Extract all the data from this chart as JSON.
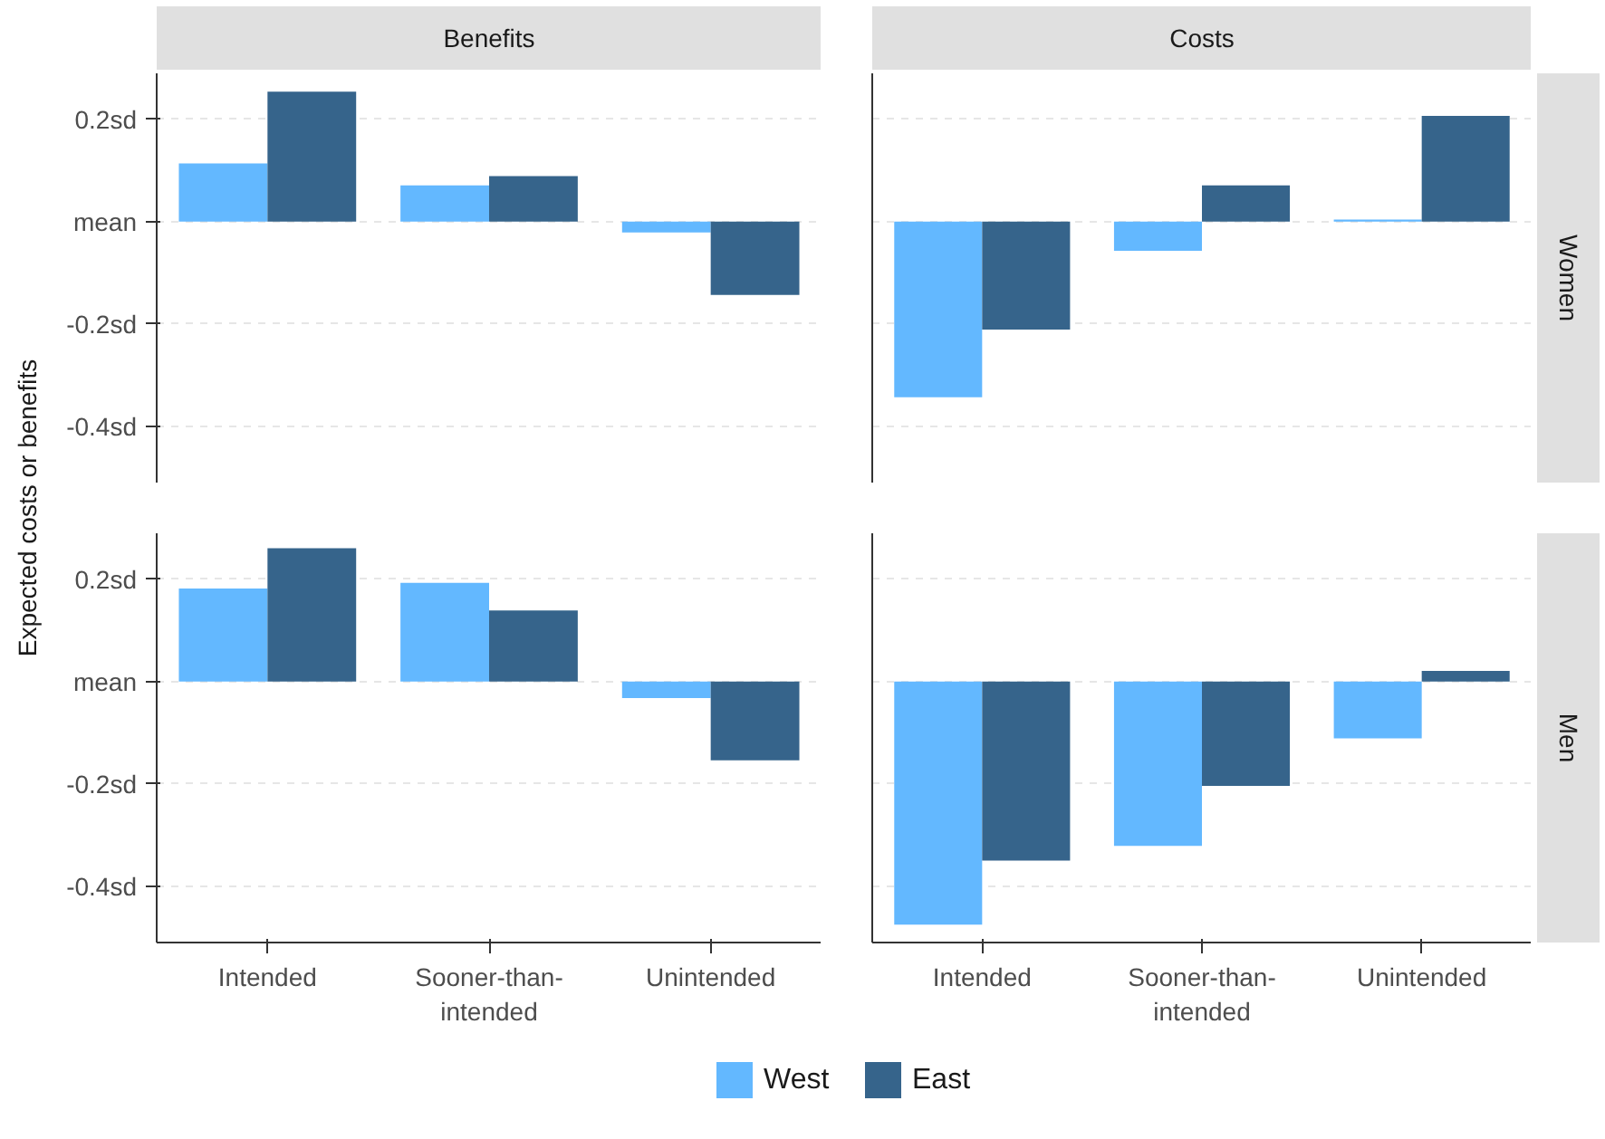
{
  "chart_data": [
    {
      "type": "bar",
      "title": "Benefits",
      "ylabel": "Expected costs or benefits",
      "categories": [
        "Intended",
        "Sooner-than-intended",
        "Unintended"
      ],
      "series": [
        {
          "name": "West",
          "color": "#63b8ff",
          "values": [
            0.114,
            0.071,
            -0.021
          ]
        },
        {
          "name": "East",
          "color": "#36648b",
          "values": [
            0.254,
            0.089,
            -0.143
          ]
        }
      ],
      "ylim": [
        -0.51,
        0.29
      ],
      "yticks": [
        {
          "value": -0.4,
          "label": "-0.4sd"
        },
        {
          "value": -0.2,
          "label": "-0.2sd"
        },
        {
          "value": 0,
          "label": "mean"
        },
        {
          "value": 0.2,
          "label": "0.2sd"
        }
      ],
      "grid": "y",
      "legend": "bottom",
      "tick_labels": "y"
    },
    {
      "type": "bar",
      "title": "Costs",
      "annotations": [
        "Women"
      ],
      "categories": [
        "Intended",
        "Sooner-than-intended",
        "Unintended"
      ],
      "series": [
        {
          "name": "West",
          "color": "#63b8ff",
          "values": [
            -0.343,
            -0.057,
            0.004
          ]
        },
        {
          "name": "East",
          "color": "#36648b",
          "values": [
            -0.211,
            0.071,
            0.207
          ]
        }
      ],
      "ylim": [
        -0.51,
        0.29
      ],
      "yticks": [
        {
          "value": -0.4,
          "label": "-0.4sd"
        },
        {
          "value": -0.2,
          "label": "-0.2sd"
        },
        {
          "value": 0,
          "label": "mean"
        },
        {
          "value": 0.2,
          "label": "0.2sd"
        }
      ],
      "grid": "y",
      "tick_labels": false
    },
    {
      "type": "bar",
      "categories": [
        "Intended",
        "Sooner-than-intended",
        "Unintended"
      ],
      "series": [
        {
          "name": "West",
          "color": "#63b8ff",
          "values": [
            0.182,
            0.193,
            -0.032
          ]
        },
        {
          "name": "East",
          "color": "#36648b",
          "values": [
            0.261,
            0.139,
            -0.154
          ]
        }
      ],
      "ylim": [
        -0.51,
        0.29
      ],
      "yticks": [
        {
          "value": -0.4,
          "label": "-0.4sd"
        },
        {
          "value": -0.2,
          "label": "-0.2sd"
        },
        {
          "value": 0,
          "label": "mean"
        },
        {
          "value": 0.2,
          "label": "0.2sd"
        }
      ],
      "grid": "y"
    },
    {
      "type": "bar",
      "annotations": [
        "Men"
      ],
      "categories": [
        "Intended",
        "Sooner-than-intended",
        "Unintended"
      ],
      "series": [
        {
          "name": "West",
          "color": "#63b8ff",
          "values": [
            -0.475,
            -0.321,
            -0.111
          ]
        },
        {
          "name": "East",
          "color": "#36648b",
          "values": [
            -0.35,
            -0.204,
            0.021
          ]
        }
      ],
      "ylim": [
        -0.51,
        0.29
      ],
      "yticks": [
        {
          "value": -0.4,
          "label": "-0.4sd"
        },
        {
          "value": -0.2,
          "label": "-0.2sd"
        },
        {
          "value": 0,
          "label": "mean"
        },
        {
          "value": 0.2,
          "label": "0.2sd"
        }
      ],
      "grid": "y",
      "tick_labels": "x"
    }
  ]
}
